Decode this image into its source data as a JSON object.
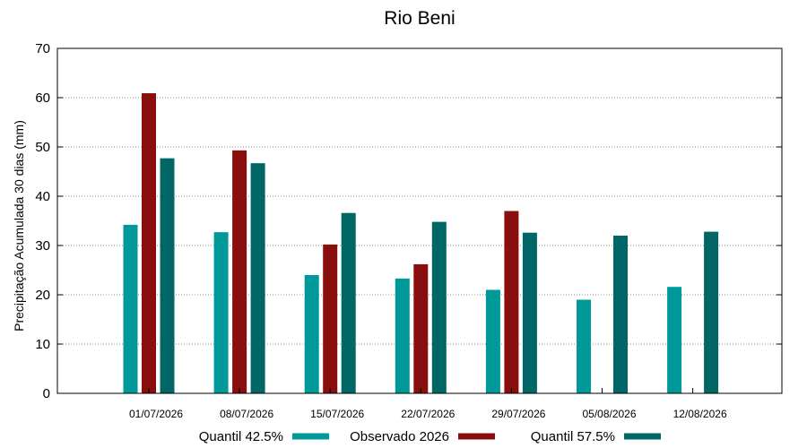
{
  "chart_data": {
    "type": "bar",
    "title": "Rio Beni",
    "xlabel": "",
    "ylabel": "Precipitação Acumulada 30 dias (mm)",
    "ylim": [
      0,
      70
    ],
    "yticks": [
      0,
      10,
      20,
      30,
      40,
      50,
      60,
      70
    ],
    "grid": "horizontal dotted",
    "legend_position": "bottom",
    "categories": [
      "01/07/2026",
      "08/07/2026",
      "15/07/2026",
      "22/07/2026",
      "29/07/2026",
      "05/08/2026",
      "12/08/2026"
    ],
    "series": [
      {
        "name": "Quantil 42.5%",
        "color": "#009999",
        "values": [
          34.2,
          32.7,
          24.0,
          23.3,
          21.0,
          19.0,
          21.6
        ]
      },
      {
        "name": "Observado 2026",
        "color": "#8b0e0e",
        "values": [
          60.9,
          49.3,
          30.2,
          26.2,
          37.0,
          null,
          null
        ]
      },
      {
        "name": "Quantil 57.5%",
        "color": "#006666",
        "values": [
          47.7,
          46.7,
          36.6,
          34.8,
          32.6,
          32.0,
          32.8
        ]
      }
    ]
  }
}
